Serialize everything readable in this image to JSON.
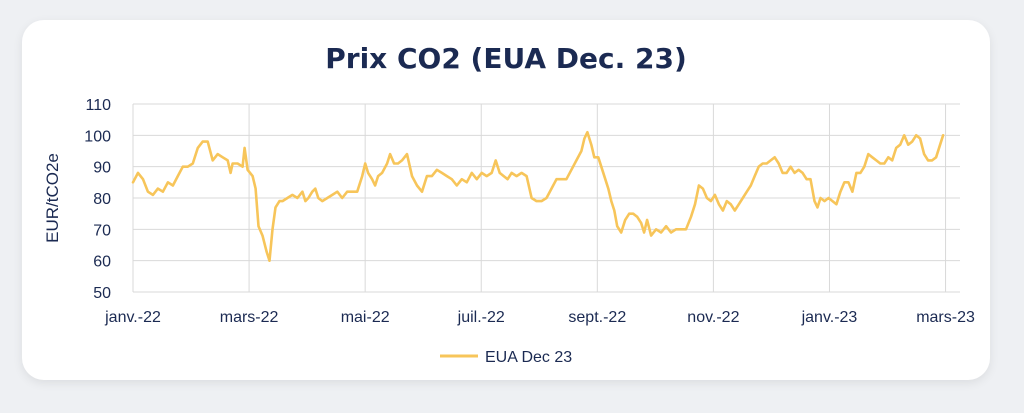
{
  "chart_data": {
    "type": "line",
    "title": "Prix CO2 (EUA Dec. 23)",
    "ylabel": "EUR/tCO2e",
    "xlabel": "",
    "ylim": [
      50,
      110
    ],
    "yticks": [
      50,
      60,
      70,
      80,
      90,
      100,
      110
    ],
    "xticks": [
      "janv.-22",
      "mars-22",
      "mai-22",
      "juil.-22",
      "sept.-22",
      "nov.-22",
      "janv.-23",
      "mars-23"
    ],
    "grid": true,
    "legend": "bottom",
    "color": "#f7c55a",
    "series": [
      {
        "name": "EUA Dec 23",
        "points": [
          [
            0.0,
            85
          ],
          [
            0.5,
            88
          ],
          [
            1.0,
            86
          ],
          [
            1.5,
            82
          ],
          [
            2.0,
            81
          ],
          [
            2.5,
            83
          ],
          [
            3.0,
            82
          ],
          [
            3.5,
            85
          ],
          [
            4.0,
            84
          ],
          [
            4.5,
            87
          ],
          [
            5.0,
            90
          ],
          [
            5.5,
            90
          ],
          [
            6.0,
            91
          ],
          [
            6.5,
            96
          ],
          [
            7.0,
            98
          ],
          [
            7.5,
            98
          ],
          [
            8.0,
            92
          ],
          [
            8.5,
            94
          ],
          [
            9.0,
            93
          ],
          [
            9.5,
            92
          ],
          [
            9.8,
            88
          ],
          [
            10.0,
            91
          ],
          [
            10.5,
            91
          ],
          [
            11.0,
            90
          ],
          [
            11.2,
            96
          ],
          [
            11.5,
            89
          ],
          [
            12.0,
            87
          ],
          [
            12.3,
            83
          ],
          [
            12.6,
            71
          ],
          [
            13.0,
            68
          ],
          [
            13.4,
            63
          ],
          [
            13.7,
            60
          ],
          [
            14.0,
            70
          ],
          [
            14.3,
            77
          ],
          [
            14.7,
            79
          ],
          [
            15.0,
            79
          ],
          [
            15.5,
            80
          ],
          [
            16.0,
            81
          ],
          [
            16.5,
            80
          ],
          [
            17.0,
            82
          ],
          [
            17.3,
            79
          ],
          [
            17.6,
            80
          ],
          [
            18.0,
            82
          ],
          [
            18.3,
            83
          ],
          [
            18.6,
            80
          ],
          [
            19.0,
            79
          ],
          [
            19.5,
            80
          ],
          [
            20.0,
            81
          ],
          [
            20.5,
            82
          ],
          [
            21.0,
            80
          ],
          [
            21.5,
            82
          ],
          [
            22.0,
            82
          ],
          [
            22.5,
            82
          ],
          [
            23.0,
            87
          ],
          [
            23.3,
            91
          ],
          [
            23.6,
            88
          ],
          [
            24.0,
            86
          ],
          [
            24.3,
            84
          ],
          [
            24.6,
            87
          ],
          [
            25.0,
            88
          ],
          [
            25.5,
            91
          ],
          [
            25.8,
            94
          ],
          [
            26.2,
            91
          ],
          [
            26.6,
            91
          ],
          [
            27.0,
            92
          ],
          [
            27.5,
            94
          ],
          [
            28.0,
            87
          ],
          [
            28.5,
            84
          ],
          [
            29.0,
            82
          ],
          [
            29.5,
            87
          ],
          [
            30.0,
            87
          ],
          [
            30.5,
            89
          ],
          [
            31.0,
            88
          ],
          [
            31.5,
            87
          ],
          [
            32.0,
            86
          ],
          [
            32.5,
            84
          ],
          [
            33.0,
            86
          ],
          [
            33.5,
            85
          ],
          [
            34.0,
            88
          ],
          [
            34.5,
            86
          ],
          [
            35.0,
            88
          ],
          [
            35.5,
            87
          ],
          [
            36.0,
            88
          ],
          [
            36.4,
            92
          ],
          [
            36.8,
            88
          ],
          [
            37.2,
            87
          ],
          [
            37.6,
            86
          ],
          [
            38.0,
            88
          ],
          [
            38.5,
            87
          ],
          [
            39.0,
            88
          ],
          [
            39.5,
            87
          ],
          [
            40.0,
            80
          ],
          [
            40.5,
            79
          ],
          [
            41.0,
            79
          ],
          [
            41.5,
            80
          ],
          [
            42.0,
            83
          ],
          [
            42.5,
            86
          ],
          [
            43.0,
            86
          ],
          [
            43.5,
            86
          ],
          [
            44.0,
            89
          ],
          [
            44.5,
            92
          ],
          [
            45.0,
            95
          ],
          [
            45.3,
            99
          ],
          [
            45.6,
            101
          ],
          [
            46.0,
            97
          ],
          [
            46.3,
            93
          ],
          [
            46.7,
            93
          ],
          [
            47.0,
            90
          ],
          [
            47.4,
            86
          ],
          [
            47.7,
            83
          ],
          [
            48.0,
            79
          ],
          [
            48.3,
            76
          ],
          [
            48.6,
            71
          ],
          [
            49.0,
            69
          ],
          [
            49.4,
            73
          ],
          [
            49.8,
            75
          ],
          [
            50.2,
            75
          ],
          [
            50.6,
            74
          ],
          [
            51.0,
            72
          ],
          [
            51.3,
            69
          ],
          [
            51.6,
            73
          ],
          [
            52.0,
            68
          ],
          [
            52.5,
            70
          ],
          [
            53.0,
            69
          ],
          [
            53.5,
            71
          ],
          [
            54.0,
            69
          ],
          [
            54.5,
            70
          ],
          [
            55.0,
            70
          ],
          [
            55.5,
            70
          ],
          [
            56.0,
            74
          ],
          [
            56.4,
            78
          ],
          [
            56.8,
            84
          ],
          [
            57.2,
            83
          ],
          [
            57.6,
            80
          ],
          [
            58.0,
            79
          ],
          [
            58.4,
            81
          ],
          [
            58.8,
            78
          ],
          [
            59.2,
            76
          ],
          [
            59.6,
            79
          ],
          [
            60.0,
            78
          ],
          [
            60.4,
            76
          ],
          [
            60.8,
            78
          ],
          [
            61.2,
            80
          ],
          [
            61.6,
            82
          ],
          [
            62.0,
            84
          ],
          [
            62.4,
            87
          ],
          [
            62.8,
            90
          ],
          [
            63.2,
            91
          ],
          [
            63.6,
            91
          ],
          [
            64.0,
            92
          ],
          [
            64.4,
            93
          ],
          [
            64.8,
            91
          ],
          [
            65.2,
            88
          ],
          [
            65.6,
            88
          ],
          [
            66.0,
            90
          ],
          [
            66.4,
            88
          ],
          [
            66.8,
            89
          ],
          [
            67.2,
            88
          ],
          [
            67.6,
            86
          ],
          [
            68.0,
            86
          ],
          [
            68.4,
            79
          ],
          [
            68.7,
            77
          ],
          [
            69.0,
            80
          ],
          [
            69.4,
            79
          ],
          [
            69.8,
            80
          ],
          [
            70.2,
            79
          ],
          [
            70.6,
            78
          ],
          [
            71.0,
            82
          ],
          [
            71.4,
            85
          ],
          [
            71.8,
            85
          ],
          [
            72.2,
            82
          ],
          [
            72.6,
            88
          ],
          [
            73.0,
            88
          ],
          [
            73.4,
            90
          ],
          [
            73.8,
            94
          ],
          [
            74.2,
            93
          ],
          [
            74.6,
            92
          ],
          [
            75.0,
            91
          ],
          [
            75.4,
            91
          ],
          [
            75.8,
            93
          ],
          [
            76.2,
            92
          ],
          [
            76.6,
            96
          ],
          [
            77.0,
            97
          ],
          [
            77.4,
            100
          ],
          [
            77.8,
            97
          ],
          [
            78.2,
            98
          ],
          [
            78.6,
            100
          ],
          [
            79.0,
            99
          ],
          [
            79.4,
            94
          ],
          [
            79.8,
            92
          ],
          [
            80.2,
            92
          ],
          [
            80.6,
            93
          ],
          [
            81.0,
            97
          ],
          [
            81.3,
            100
          ]
        ]
      }
    ]
  }
}
